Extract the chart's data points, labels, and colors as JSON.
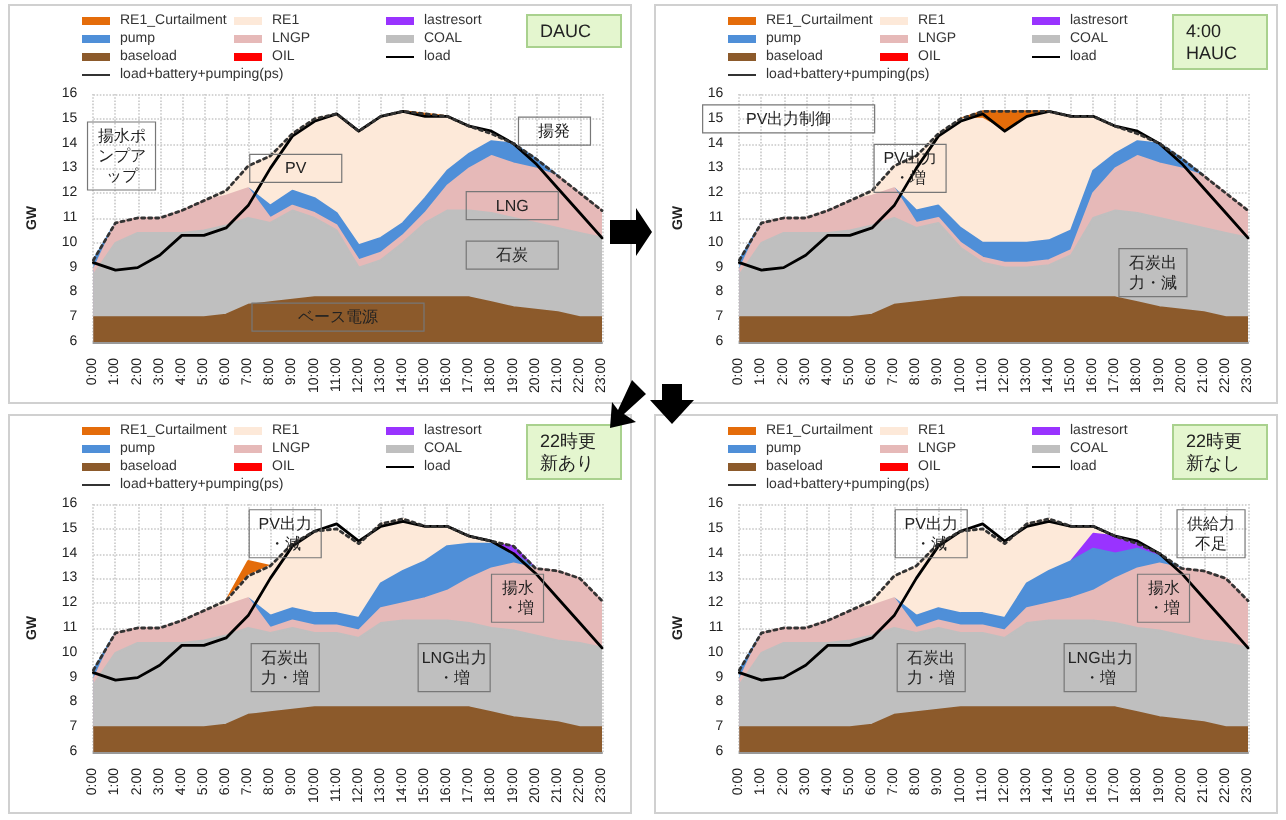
{
  "chart_data": [
    {
      "type": "area",
      "ylabel": "GW",
      "ylim": [
        6,
        16
      ],
      "yticks": [
        6,
        7,
        8,
        9,
        10,
        11,
        12,
        13,
        14,
        15,
        16
      ],
      "grid": true,
      "legend": "top",
      "marker": "none",
      "categories": [
        "0:00",
        "1:00",
        "2:00",
        "3:00",
        "4:00",
        "5:00",
        "6:00",
        "7:00",
        "8:00",
        "9:00",
        "10:00",
        "11:00",
        "12:00",
        "13:00",
        "14:00",
        "15:00",
        "16:00",
        "17:00",
        "18:00",
        "19:00",
        "20:00",
        "21:00",
        "22:00",
        "23:00"
      ],
      "annotations": [
        "DAUC",
        "揚水ポンプアップ",
        "PV",
        "LNG",
        "石炭",
        "ベース電源",
        "揚発"
      ],
      "series": [
        {
          "name": "RE1_Curtailment",
          "color": "#e46c0a",
          "values": [
            null,
            null,
            null,
            null,
            null,
            null,
            null,
            null,
            null,
            null,
            null,
            null,
            null,
            null,
            15.3,
            15.2,
            15.1,
            null,
            null,
            null,
            null,
            null,
            null,
            null
          ]
        },
        {
          "name": "RE1",
          "color": "#fde9d9",
          "values": [
            null,
            null,
            null,
            null,
            null,
            11.7,
            12.1,
            13.1,
            13.5,
            14.4,
            15.0,
            15.2,
            14.5,
            15.1,
            15.3,
            15.1,
            15.1,
            14.7,
            14.4,
            14.0,
            null,
            null,
            null,
            null
          ]
        },
        {
          "name": "lastresort",
          "color": "#9933ff",
          "values": [
            null,
            null,
            null,
            null,
            null,
            null,
            null,
            null,
            null,
            null,
            null,
            null,
            null,
            null,
            null,
            null,
            null,
            null,
            null,
            null,
            null,
            null,
            null,
            null
          ]
        },
        {
          "name": "pump",
          "color": "#4f8fd8",
          "values": [
            9.3,
            10.8,
            null,
            null,
            null,
            null,
            null,
            12.2,
            11.5,
            12.1,
            11.8,
            11.2,
            9.9,
            10.2,
            10.8,
            11.8,
            12.9,
            13.6,
            14.1,
            14.0,
            13.4,
            12.7,
            null,
            null
          ]
        },
        {
          "name": "LNGP",
          "color": "#e6b9b8",
          "values": [
            8.9,
            10.8,
            11.0,
            11.0,
            11.3,
            11.7,
            11.9,
            12.2,
            11.0,
            11.5,
            11.2,
            10.7,
            9.3,
            9.6,
            10.3,
            11.2,
            12.3,
            13.0,
            13.5,
            13.2,
            13.0,
            12.7,
            12.0,
            11.3
          ]
        },
        {
          "name": "COAL",
          "color": "#bfbfbf",
          "values": [
            8.7,
            10.0,
            10.4,
            10.4,
            10.4,
            10.5,
            10.7,
            11.0,
            10.8,
            11.3,
            11.0,
            10.5,
            9.0,
            9.3,
            10.0,
            10.8,
            11.3,
            11.3,
            11.2,
            11.0,
            10.8,
            10.6,
            10.4,
            10.2
          ]
        },
        {
          "name": "baseload",
          "color": "#8c5a2b",
          "values": [
            7.0,
            7.0,
            7.0,
            7.0,
            7.0,
            7.0,
            7.1,
            7.5,
            7.6,
            7.7,
            7.8,
            7.8,
            7.8,
            7.8,
            7.8,
            7.8,
            7.8,
            7.8,
            7.6,
            7.4,
            7.3,
            7.2,
            7.0,
            7.0
          ]
        },
        {
          "name": "OIL",
          "color": "#ff0000",
          "values": [
            null,
            null,
            null,
            null,
            null,
            null,
            null,
            null,
            null,
            null,
            null,
            null,
            null,
            null,
            null,
            null,
            null,
            null,
            null,
            null,
            null,
            null,
            null,
            null
          ]
        },
        {
          "name": "load",
          "type": "line",
          "color": "#000000",
          "line_style": "solid",
          "values": [
            9.2,
            8.9,
            9.0,
            9.5,
            10.3,
            10.3,
            10.6,
            11.5,
            13.0,
            14.3,
            14.9,
            15.2,
            14.5,
            15.1,
            15.3,
            15.1,
            15.1,
            14.7,
            14.5,
            14.0,
            13.2,
            12.2,
            11.2,
            10.2
          ]
        },
        {
          "name": "load+battery+pumping(ps)",
          "type": "line",
          "color": "#333333",
          "line_style": "dotted",
          "values": [
            9.3,
            10.8,
            11.0,
            11.0,
            11.3,
            11.7,
            12.1,
            13.1,
            13.5,
            14.4,
            15.0,
            15.2,
            14.5,
            15.1,
            15.3,
            15.2,
            15.1,
            14.7,
            14.4,
            14.0,
            13.4,
            12.7,
            12.0,
            11.3
          ]
        }
      ]
    },
    {
      "type": "area",
      "ylabel": "GW",
      "ylim": [
        6,
        16
      ],
      "yticks": [
        6,
        7,
        8,
        9,
        10,
        11,
        12,
        13,
        14,
        15,
        16
      ],
      "grid": true,
      "legend": "top",
      "marker": "none",
      "categories": [
        "0:00",
        "1:00",
        "2:00",
        "3:00",
        "4:00",
        "5:00",
        "6:00",
        "7:00",
        "8:00",
        "9:00",
        "10:00",
        "11:00",
        "12:00",
        "13:00",
        "14:00",
        "15:00",
        "16:00",
        "17:00",
        "18:00",
        "19:00",
        "20:00",
        "21:00",
        "22:00",
        "23:00"
      ],
      "annotations": [
        "4:00 HAUC",
        "PV出力制御",
        "PV出力・増",
        "石炭出力・減"
      ],
      "series": [
        {
          "name": "RE1_Curtailment",
          "color": "#e46c0a",
          "values": [
            null,
            null,
            null,
            null,
            null,
            null,
            null,
            null,
            null,
            null,
            15.0,
            15.3,
            15.3,
            15.3,
            15.3,
            null,
            null,
            null,
            null,
            null,
            null,
            null,
            null,
            null
          ]
        },
        {
          "name": "RE1",
          "color": "#fde9d9",
          "values": [
            null,
            null,
            null,
            null,
            null,
            11.7,
            12.1,
            13.1,
            13.5,
            14.4,
            15.0,
            15.0,
            14.5,
            15.0,
            15.3,
            15.1,
            15.1,
            14.7,
            14.4,
            14.0,
            null,
            null,
            null,
            null
          ]
        },
        {
          "name": "lastresort",
          "color": "#9933ff",
          "values": [
            null,
            null,
            null,
            null,
            null,
            null,
            null,
            null,
            null,
            null,
            null,
            null,
            null,
            null,
            null,
            null,
            null,
            null,
            null,
            null,
            null,
            null,
            null,
            null
          ]
        },
        {
          "name": "pump",
          "color": "#4f8fd8",
          "values": [
            9.3,
            10.8,
            null,
            null,
            null,
            null,
            null,
            12.2,
            11.3,
            11.5,
            10.6,
            10.0,
            10.0,
            10.0,
            10.1,
            10.5,
            12.9,
            13.6,
            14.1,
            14.0,
            13.4,
            12.7,
            null,
            null
          ]
        },
        {
          "name": "LNGP",
          "color": "#e6b9b8",
          "values": [
            8.9,
            10.8,
            11.0,
            11.0,
            11.3,
            11.7,
            11.9,
            12.2,
            10.8,
            11.0,
            10.0,
            9.4,
            9.2,
            9.2,
            9.3,
            9.7,
            12.0,
            13.0,
            13.5,
            13.2,
            13.0,
            12.7,
            12.0,
            11.3
          ]
        },
        {
          "name": "COAL",
          "color": "#bfbfbf",
          "values": [
            8.7,
            10.0,
            10.4,
            10.4,
            10.4,
            10.5,
            10.7,
            11.0,
            10.6,
            10.8,
            9.8,
            9.2,
            9.0,
            9.0,
            9.1,
            9.5,
            11.0,
            11.3,
            11.2,
            11.0,
            10.8,
            10.6,
            10.4,
            10.2
          ]
        },
        {
          "name": "baseload",
          "color": "#8c5a2b",
          "values": [
            7.0,
            7.0,
            7.0,
            7.0,
            7.0,
            7.0,
            7.1,
            7.5,
            7.6,
            7.7,
            7.8,
            7.8,
            7.8,
            7.8,
            7.8,
            7.8,
            7.8,
            7.8,
            7.6,
            7.4,
            7.3,
            7.2,
            7.0,
            7.0
          ]
        },
        {
          "name": "OIL",
          "color": "#ff0000",
          "values": [
            null,
            null,
            null,
            null,
            null,
            null,
            null,
            null,
            null,
            null,
            null,
            null,
            null,
            null,
            null,
            null,
            null,
            null,
            null,
            null,
            null,
            null,
            null,
            null
          ]
        },
        {
          "name": "load",
          "type": "line",
          "color": "#000000",
          "line_style": "solid",
          "values": [
            9.2,
            8.9,
            9.0,
            9.5,
            10.3,
            10.3,
            10.6,
            11.5,
            13.0,
            14.3,
            14.9,
            15.2,
            14.5,
            15.1,
            15.3,
            15.1,
            15.1,
            14.7,
            14.5,
            14.0,
            13.2,
            12.2,
            11.2,
            10.2
          ]
        },
        {
          "name": "load+battery+pumping(ps)",
          "type": "line",
          "color": "#333333",
          "line_style": "dotted",
          "values": [
            9.3,
            10.8,
            11.0,
            11.0,
            11.3,
            11.7,
            12.1,
            13.1,
            13.5,
            14.4,
            15.0,
            15.3,
            15.3,
            15.3,
            15.3,
            15.1,
            15.1,
            14.7,
            14.4,
            14.0,
            13.4,
            12.7,
            12.0,
            11.3
          ]
        }
      ]
    },
    {
      "type": "area",
      "ylabel": "GW",
      "ylim": [
        6,
        16
      ],
      "yticks": [
        6,
        7,
        8,
        9,
        10,
        11,
        12,
        13,
        14,
        15,
        16
      ],
      "grid": true,
      "legend": "top",
      "marker": "none",
      "categories": [
        "0:00",
        "1:00",
        "2:00",
        "3:00",
        "4:00",
        "5:00",
        "6:00",
        "7:00",
        "8:00",
        "9:00",
        "10:00",
        "11:00",
        "12:00",
        "13:00",
        "14:00",
        "15:00",
        "16:00",
        "17:00",
        "18:00",
        "19:00",
        "20:00",
        "21:00",
        "22:00",
        "23:00"
      ],
      "annotations": [
        "22時更新あり",
        "PV出力・減",
        "揚水・増",
        "石炭出力・増",
        "LNG出力・増"
      ],
      "series": [
        {
          "name": "RE1_Curtailment",
          "color": "#e46c0a",
          "values": [
            null,
            null,
            null,
            null,
            null,
            null,
            12.1,
            13.7,
            13.5,
            null,
            null,
            null,
            null,
            null,
            null,
            null,
            null,
            null,
            null,
            null,
            null,
            null,
            null,
            null
          ]
        },
        {
          "name": "RE1",
          "color": "#fde9d9",
          "values": [
            null,
            null,
            null,
            null,
            null,
            11.7,
            12.1,
            13.1,
            13.5,
            14.4,
            14.9,
            15.0,
            14.4,
            15.2,
            15.4,
            15.1,
            15.1,
            14.7,
            14.5,
            14.3,
            null,
            null,
            null,
            null
          ]
        },
        {
          "name": "lastresort",
          "color": "#9933ff",
          "values": [
            null,
            null,
            null,
            null,
            null,
            null,
            null,
            null,
            null,
            null,
            null,
            null,
            null,
            null,
            null,
            null,
            null,
            null,
            14.4,
            14.3,
            13.4,
            null,
            null,
            null
          ]
        },
        {
          "name": "pump",
          "color": "#4f8fd8",
          "values": [
            9.3,
            10.8,
            null,
            null,
            null,
            null,
            null,
            12.2,
            11.5,
            11.8,
            11.6,
            11.6,
            11.4,
            12.8,
            13.3,
            13.7,
            14.3,
            14.4,
            14.4,
            14.0,
            13.4,
            null,
            null,
            null
          ]
        },
        {
          "name": "LNGP",
          "color": "#e6b9b8",
          "values": [
            8.9,
            10.8,
            11.0,
            11.0,
            11.3,
            11.7,
            11.9,
            12.2,
            11.0,
            11.3,
            11.1,
            11.1,
            10.9,
            11.8,
            12.0,
            12.2,
            12.5,
            13.0,
            13.4,
            13.6,
            13.4,
            13.3,
            13.0,
            12.1
          ]
        },
        {
          "name": "COAL",
          "color": "#bfbfbf",
          "values": [
            8.7,
            10.0,
            10.4,
            10.4,
            10.4,
            10.5,
            10.7,
            11.0,
            10.8,
            11.0,
            10.8,
            10.8,
            10.6,
            11.2,
            11.3,
            11.3,
            11.3,
            11.2,
            11.0,
            10.9,
            10.7,
            10.5,
            10.4,
            10.2
          ]
        },
        {
          "name": "baseload",
          "color": "#8c5a2b",
          "values": [
            7.0,
            7.0,
            7.0,
            7.0,
            7.0,
            7.0,
            7.1,
            7.5,
            7.6,
            7.7,
            7.8,
            7.8,
            7.8,
            7.8,
            7.8,
            7.8,
            7.8,
            7.8,
            7.6,
            7.4,
            7.3,
            7.2,
            7.0,
            7.0
          ]
        },
        {
          "name": "OIL",
          "color": "#ff0000",
          "values": [
            null,
            null,
            null,
            null,
            null,
            null,
            null,
            null,
            null,
            null,
            null,
            null,
            null,
            null,
            null,
            null,
            null,
            null,
            null,
            null,
            null,
            null,
            null,
            null
          ]
        },
        {
          "name": "load",
          "type": "line",
          "color": "#000000",
          "line_style": "solid",
          "values": [
            9.2,
            8.9,
            9.0,
            9.5,
            10.3,
            10.3,
            10.6,
            11.5,
            13.0,
            14.3,
            14.9,
            15.2,
            14.5,
            15.1,
            15.3,
            15.1,
            15.1,
            14.7,
            14.5,
            14.0,
            13.2,
            12.2,
            11.2,
            10.2
          ]
        },
        {
          "name": "load+battery+pumping(ps)",
          "type": "line",
          "color": "#333333",
          "line_style": "dotted",
          "values": [
            9.3,
            10.8,
            11.0,
            11.0,
            11.3,
            11.7,
            12.1,
            13.1,
            13.5,
            14.4,
            14.9,
            15.0,
            14.4,
            15.2,
            15.4,
            15.1,
            15.1,
            14.7,
            14.5,
            14.3,
            13.4,
            13.3,
            13.0,
            12.1
          ]
        }
      ]
    },
    {
      "type": "area",
      "ylabel": "GW",
      "ylim": [
        6,
        16
      ],
      "yticks": [
        6,
        7,
        8,
        9,
        10,
        11,
        12,
        13,
        14,
        15,
        16
      ],
      "grid": true,
      "legend": "top",
      "marker": "none",
      "categories": [
        "0:00",
        "1:00",
        "2:00",
        "3:00",
        "4:00",
        "5:00",
        "6:00",
        "7:00",
        "8:00",
        "9:00",
        "10:00",
        "11:00",
        "12:00",
        "13:00",
        "14:00",
        "15:00",
        "16:00",
        "17:00",
        "18:00",
        "19:00",
        "20:00",
        "21:00",
        "22:00",
        "23:00"
      ],
      "annotations": [
        "22時更新なし",
        "PV出力・減",
        "揚水・増",
        "石炭出力・増",
        "LNG出力・増",
        "供給力不足"
      ],
      "series": [
        {
          "name": "RE1_Curtailment",
          "color": "#e46c0a",
          "values": [
            null,
            null,
            null,
            null,
            null,
            null,
            null,
            null,
            null,
            null,
            null,
            null,
            null,
            null,
            null,
            null,
            null,
            null,
            null,
            null,
            null,
            null,
            null,
            null
          ]
        },
        {
          "name": "RE1",
          "color": "#fde9d9",
          "values": [
            null,
            null,
            null,
            null,
            null,
            11.7,
            12.1,
            13.1,
            13.5,
            14.4,
            14.9,
            15.0,
            14.4,
            15.2,
            15.4,
            15.1,
            15.1,
            14.7,
            14.4,
            14.0,
            null,
            null,
            null,
            null
          ]
        },
        {
          "name": "lastresort",
          "color": "#9933ff",
          "values": [
            null,
            null,
            null,
            null,
            null,
            null,
            null,
            null,
            null,
            null,
            null,
            null,
            null,
            null,
            null,
            13.7,
            14.8,
            14.7,
            14.4,
            13.9,
            null,
            null,
            null,
            null
          ]
        },
        {
          "name": "pump",
          "color": "#4f8fd8",
          "values": [
            9.3,
            10.8,
            null,
            null,
            null,
            null,
            null,
            12.2,
            11.5,
            11.8,
            11.6,
            11.6,
            11.4,
            12.8,
            13.3,
            13.7,
            14.2,
            14.0,
            14.2,
            13.9,
            13.4,
            null,
            null,
            null
          ]
        },
        {
          "name": "LNGP",
          "color": "#e6b9b8",
          "values": [
            8.9,
            10.8,
            11.0,
            11.0,
            11.3,
            11.7,
            11.9,
            12.2,
            11.0,
            11.3,
            11.1,
            11.1,
            10.9,
            11.8,
            12.0,
            12.2,
            12.5,
            13.0,
            13.4,
            13.6,
            13.4,
            13.3,
            13.0,
            12.1
          ]
        },
        {
          "name": "COAL",
          "color": "#bfbfbf",
          "values": [
            8.7,
            10.0,
            10.4,
            10.4,
            10.4,
            10.5,
            10.7,
            11.0,
            10.8,
            11.0,
            10.8,
            10.8,
            10.6,
            11.2,
            11.3,
            11.3,
            11.3,
            11.2,
            11.0,
            10.9,
            10.7,
            10.5,
            10.4,
            10.2
          ]
        },
        {
          "name": "baseload",
          "color": "#8c5a2b",
          "values": [
            7.0,
            7.0,
            7.0,
            7.0,
            7.0,
            7.0,
            7.1,
            7.5,
            7.6,
            7.7,
            7.8,
            7.8,
            7.8,
            7.8,
            7.8,
            7.8,
            7.8,
            7.8,
            7.6,
            7.4,
            7.3,
            7.2,
            7.0,
            7.0
          ]
        },
        {
          "name": "OIL",
          "color": "#ff0000",
          "values": [
            null,
            null,
            null,
            null,
            null,
            null,
            null,
            null,
            null,
            null,
            null,
            null,
            null,
            null,
            null,
            null,
            null,
            null,
            null,
            null,
            null,
            null,
            null,
            null
          ]
        },
        {
          "name": "load",
          "type": "line",
          "color": "#000000",
          "line_style": "solid",
          "values": [
            9.2,
            8.9,
            9.0,
            9.5,
            10.3,
            10.3,
            10.6,
            11.5,
            13.0,
            14.3,
            14.9,
            15.2,
            14.5,
            15.1,
            15.3,
            15.1,
            15.1,
            14.7,
            14.5,
            14.0,
            13.2,
            12.2,
            11.2,
            10.2
          ]
        },
        {
          "name": "load+battery+pumping(ps)",
          "type": "line",
          "color": "#333333",
          "line_style": "dotted",
          "values": [
            9.3,
            10.8,
            11.0,
            11.0,
            11.3,
            11.7,
            12.1,
            13.1,
            13.5,
            14.4,
            14.9,
            15.0,
            14.4,
            15.2,
            15.4,
            15.1,
            15.1,
            14.7,
            14.4,
            14.0,
            13.4,
            13.3,
            13.0,
            12.1
          ]
        }
      ]
    }
  ]
}
